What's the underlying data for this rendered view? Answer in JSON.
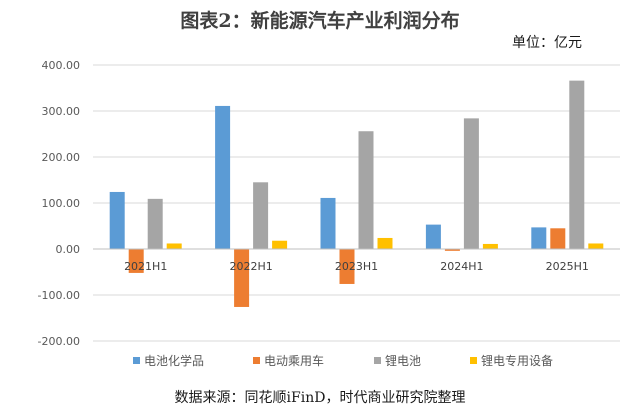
{
  "chart_data": {
    "type": "bar",
    "title": "图表2：新能源汽车产业利润分布",
    "unit": "单位：亿元",
    "source": "数据来源：同花顺iFinD，时代商业研究院整理",
    "categories": [
      "2021H1",
      "2022H1",
      "2023H1",
      "2024H1",
      "2025H1"
    ],
    "series": [
      {
        "name": "电池化学品",
        "color": "#5B9BD5",
        "values": [
          124,
          311,
          111,
          53,
          47
        ]
      },
      {
        "name": "电动乘用车",
        "color": "#ED7D31",
        "values": [
          -52,
          -126,
          -76,
          -4,
          45
        ]
      },
      {
        "name": "锂电池",
        "color": "#A5A5A5",
        "values": [
          109,
          145,
          256,
          284,
          366
        ]
      },
      {
        "name": "锂电专用设备",
        "color": "#FFC000",
        "values": [
          12,
          18,
          24,
          11,
          12
        ]
      }
    ],
    "y_ticks": [
      "400.00",
      "300.00",
      "200.00",
      "100.00",
      "0.00",
      "-100.00",
      "-200.00"
    ],
    "ylim": [
      -200,
      400
    ],
    "grid": true,
    "legend_position": "bottom"
  }
}
